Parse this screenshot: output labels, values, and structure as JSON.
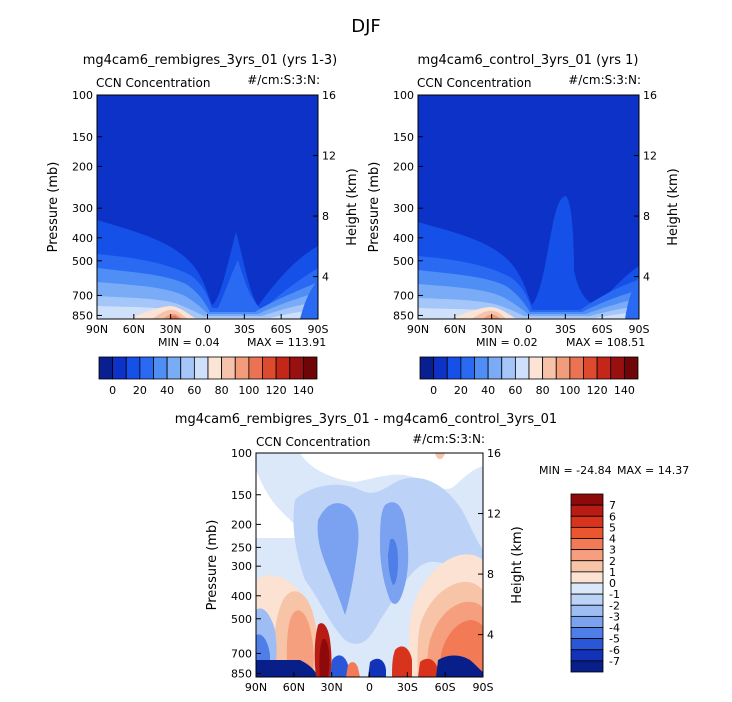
{
  "figure_title": "DJF",
  "chart_data": [
    {
      "type": "heatmap",
      "title": "mg4cam6_rembigres_3yrs_01 (yrs 1-3)",
      "left_label": "CCN Concentration",
      "right_label": "#/cm:S:3:N:",
      "xlabel": "",
      "ylabel": "Pressure (mb)",
      "y2label": "Height (km)",
      "x_ticks": [
        "90N",
        "60N",
        "30N",
        "0",
        "30S",
        "60S",
        "90S"
      ],
      "y_ticks": [
        "100",
        "150",
        "200",
        "300",
        "400",
        "500",
        "700",
        "850"
      ],
      "y2_ticks": [
        "16",
        "12",
        "8",
        "4"
      ],
      "min_text": "MIN =   0.04",
      "max_text": "MAX = 113.91",
      "min": 0.04,
      "max": 113.91,
      "colorbar_ticks": [
        "0",
        "20",
        "40",
        "60",
        "80",
        "100",
        "120",
        "140"
      ],
      "colorbar_colors": [
        "#0a1f8f",
        "#0c32c8",
        "#1550e8",
        "#2a6af2",
        "#4f8ef5",
        "#7aabf7",
        "#a4c6f8",
        "#cfe0fb",
        "#fbe3d6",
        "#f6c3aa",
        "#f29c7c",
        "#ec7352",
        "#de4a2e",
        "#c4261a",
        "#9a0f10",
        "#6e0508"
      ]
    },
    {
      "type": "heatmap",
      "title": "mg4cam6_control_3yrs_01 (yrs 1)",
      "left_label": "CCN Concentration",
      "right_label": "#/cm:S:3:N:",
      "xlabel": "",
      "ylabel": "Pressure (mb)",
      "y2label": "Height (km)",
      "x_ticks": [
        "90N",
        "60N",
        "30N",
        "0",
        "30S",
        "60S",
        "90S"
      ],
      "y_ticks": [
        "100",
        "150",
        "200",
        "300",
        "400",
        "500",
        "700",
        "850"
      ],
      "y2_ticks": [
        "16",
        "12",
        "8",
        "4"
      ],
      "min_text": "MIN =   0.02",
      "max_text": "MAX = 108.51",
      "min": 0.02,
      "max": 108.51,
      "colorbar_ticks": [
        "0",
        "20",
        "40",
        "60",
        "80",
        "100",
        "120",
        "140"
      ],
      "colorbar_colors": [
        "#0a1f8f",
        "#0c32c8",
        "#1550e8",
        "#2a6af2",
        "#4f8ef5",
        "#7aabf7",
        "#a4c6f8",
        "#cfe0fb",
        "#fbe3d6",
        "#f6c3aa",
        "#f29c7c",
        "#ec7352",
        "#de4a2e",
        "#c4261a",
        "#9a0f10",
        "#6e0508"
      ]
    },
    {
      "type": "heatmap",
      "title": "mg4cam6_rembigres_3yrs_01 - mg4cam6_control_3yrs_01",
      "left_label": "CCN Concentration",
      "right_label": "#/cm:S:3:N:",
      "xlabel": "",
      "ylabel": "Pressure (mb)",
      "y2label": "Height (km)",
      "x_ticks": [
        "90N",
        "60N",
        "30N",
        "0",
        "30S",
        "60S",
        "90S"
      ],
      "y_ticks": [
        "100",
        "150",
        "200",
        "250",
        "300",
        "400",
        "500",
        "700",
        "850"
      ],
      "y2_ticks": [
        "16",
        "12",
        "8",
        "4"
      ],
      "min_text": "MIN = -24.84",
      "max_text": "MAX =  14.37",
      "min": -24.84,
      "max": 14.37,
      "colorbar_ticks": [
        "7",
        "6",
        "5",
        "4",
        "3",
        "2",
        "1",
        "0",
        "-1",
        "-2",
        "-3",
        "-4",
        "-5",
        "-6",
        "-7"
      ],
      "colorbar_colors": [
        "#8e0a0a",
        "#b81c12",
        "#d8341d",
        "#ea5630",
        "#f27a55",
        "#f59f7e",
        "#f8c4a8",
        "#fbe2d2",
        "#dbe8fa",
        "#bcd3f7",
        "#9dbdf4",
        "#7aa2f0",
        "#4f7ee8",
        "#2a57d8",
        "#1232b8",
        "#081f8a"
      ]
    }
  ]
}
